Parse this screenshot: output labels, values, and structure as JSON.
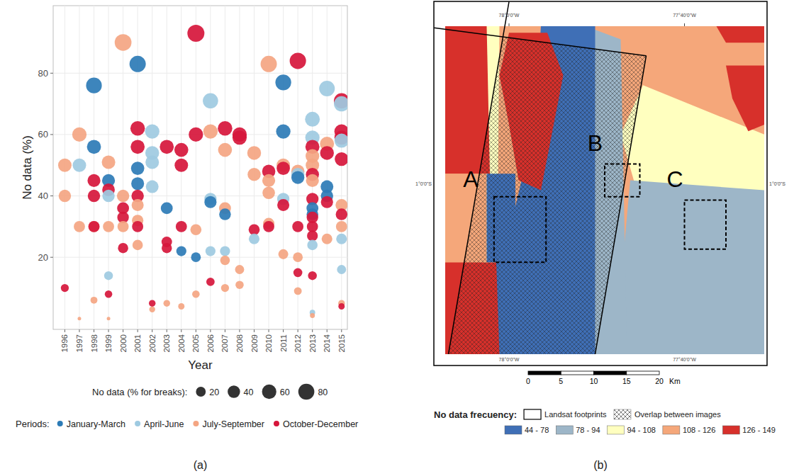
{
  "chart_data": [
    {
      "type": "scatter",
      "panel_label": "(a)",
      "x_label": "Year",
      "y_label": "No data (%)",
      "xlim": [
        1995.2,
        2015.4
      ],
      "xticks": [
        1996,
        1997,
        1998,
        1999,
        2000,
        2001,
        2002,
        2003,
        2004,
        2005,
        2006,
        2007,
        2008,
        2009,
        2010,
        2011,
        2012,
        2013,
        2014,
        2015
      ],
      "ylim": [
        -3.5,
        102
      ],
      "yticks": [
        20,
        40,
        60,
        80
      ],
      "grid": true,
      "size_legend_title": "No data (% for breaks):",
      "size_legend": [
        20,
        40,
        60,
        80
      ],
      "legend_title": "Periods:",
      "legend": "bottom",
      "series": [
        {
          "name": "January-March",
          "color": "#2c7bb6",
          "x": [
            1998,
            1998,
            1999,
            2001,
            2001,
            2001,
            2003,
            2004,
            2005,
            2006,
            2007,
            2011,
            2011,
            2012,
            2013,
            2013,
            2014,
            2014
          ],
          "values": [
            76,
            56,
            45,
            83,
            49,
            44,
            36,
            22,
            20,
            38,
            34,
            77,
            61,
            46,
            36,
            34,
            43,
            40
          ],
          "sizes": [
            76,
            56,
            45,
            83,
            49,
            44,
            36,
            22,
            20,
            38,
            34,
            77,
            61,
            46,
            36,
            34,
            43,
            40
          ]
        },
        {
          "name": "April-June",
          "color": "#9ecae1",
          "x": [
            1997,
            1999,
            1999,
            2002,
            2002,
            2002,
            2002,
            2006,
            2006,
            2006,
            2007,
            2009,
            2011,
            2012,
            2013,
            2013,
            2013,
            2013,
            2014,
            2015,
            2015,
            2015,
            2015
          ],
          "values": [
            50,
            40,
            14,
            61,
            54,
            51,
            43,
            71,
            39,
            22,
            22,
            26,
            39,
            47,
            65,
            59,
            24,
            2,
            75,
            70,
            58,
            26,
            16
          ],
          "sizes": [
            50,
            40,
            14,
            61,
            54,
            51,
            43,
            71,
            39,
            22,
            22,
            26,
            39,
            47,
            65,
            59,
            24,
            2,
            75,
            70,
            58,
            26,
            16
          ]
        },
        {
          "name": "July-September",
          "color": "#f4a582",
          "x": [
            1996,
            1996,
            1997,
            1997,
            1997,
            1998,
            1998,
            1999,
            1999,
            1999,
            2000,
            2000,
            2000,
            2001,
            2001,
            2001,
            2002,
            2003,
            2004,
            2005,
            2005,
            2006,
            2007,
            2007,
            2007,
            2007,
            2008,
            2008,
            2009,
            2009,
            2010,
            2010,
            2010,
            2010,
            2011,
            2011,
            2012,
            2012,
            2012,
            2013,
            2013,
            2013,
            2013,
            2014,
            2014,
            2015,
            2015,
            2015
          ],
          "values": [
            50,
            40,
            60,
            30,
            0,
            30,
            6,
            51,
            30,
            0,
            90,
            40,
            30,
            37,
            32,
            24,
            3,
            5,
            4,
            29,
            8,
            61,
            55,
            36,
            19,
            10,
            16,
            11,
            54,
            47,
            83,
            45,
            41,
            31,
            50,
            21,
            48,
            20,
            9,
            53,
            50,
            45,
            1,
            57,
            26,
            37,
            30,
            5
          ],
          "sizes": [
            50,
            40,
            60,
            30,
            0,
            30,
            6,
            51,
            30,
            0,
            90,
            40,
            30,
            37,
            32,
            24,
            3,
            5,
            4,
            29,
            8,
            61,
            55,
            36,
            19,
            10,
            16,
            11,
            54,
            47,
            83,
            45,
            41,
            31,
            50,
            21,
            48,
            20,
            9,
            53,
            50,
            45,
            1,
            57,
            26,
            37,
            30,
            5
          ]
        },
        {
          "name": "October-December",
          "color": "#d6163b",
          "x": [
            1996,
            1998,
            1998,
            1998,
            1999,
            1999,
            2000,
            2000,
            2000,
            2001,
            2001,
            2001,
            2001,
            2002,
            2003,
            2003,
            2003,
            2004,
            2004,
            2004,
            2005,
            2005,
            2006,
            2007,
            2008,
            2008,
            2009,
            2010,
            2010,
            2011,
            2011,
            2012,
            2012,
            2012,
            2013,
            2013,
            2013,
            2013,
            2013,
            2013,
            2013,
            2014,
            2014,
            2015,
            2015,
            2015,
            2015,
            2015,
            2015
          ],
          "values": [
            10,
            45,
            40,
            30,
            42,
            8,
            36,
            33,
            23,
            62,
            56,
            40,
            30,
            5,
            56,
            25,
            23,
            55,
            50,
            30,
            93,
            60,
            12,
            62,
            60,
            59,
            29,
            48,
            30,
            49,
            37,
            84,
            30,
            15,
            56,
            47,
            39,
            33,
            30,
            27,
            14,
            54,
            38,
            71,
            61,
            59,
            52,
            34,
            4
          ],
          "sizes": [
            10,
            45,
            40,
            30,
            42,
            8,
            36,
            33,
            23,
            62,
            56,
            40,
            30,
            5,
            56,
            25,
            23,
            55,
            50,
            30,
            93,
            60,
            12,
            62,
            60,
            59,
            29,
            48,
            30,
            49,
            37,
            84,
            30,
            15,
            56,
            47,
            39,
            33,
            30,
            27,
            14,
            54,
            38,
            71,
            61,
            59,
            52,
            34,
            4
          ]
        }
      ]
    },
    {
      "type": "map",
      "panel_label": "(b)",
      "legend_title": "No data frecuency:",
      "footprint_label": "Landsat footprints",
      "overlap_label": "Overlap between images",
      "classes": [
        {
          "label": "44 - 78",
          "color": "#3f6fb6"
        },
        {
          "label": "78 - 94",
          "color": "#9db6c8"
        },
        {
          "label": "94 - 108",
          "color": "#ffffbf"
        },
        {
          "label": "108 - 126",
          "color": "#f5a77a"
        },
        {
          "label": "126 - 149",
          "color": "#d7302b"
        }
      ],
      "areas": [
        "A",
        "B",
        "C"
      ],
      "lon_labels": [
        "78°0'0\"W",
        "77°40'0\"W"
      ],
      "lat_labels": [
        "1°0'0\"S"
      ],
      "scale_ticks": [
        0,
        5,
        10,
        15,
        20
      ],
      "scale_unit": "Km"
    }
  ]
}
